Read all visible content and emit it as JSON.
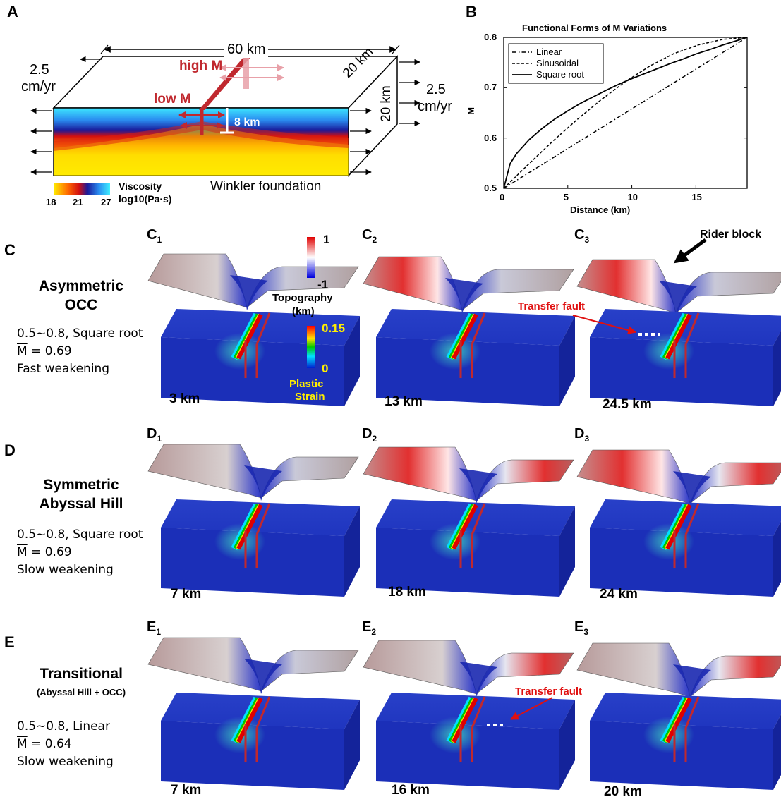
{
  "panelA": {
    "label": "A",
    "width_label": "60 km",
    "depth_label_top": "20 km",
    "depth_label_side": "20 km",
    "rate_left_value": "2.5",
    "rate_left_unit": "cm/yr",
    "rate_right_value": "2.5",
    "rate_right_unit": "cm/yr",
    "high_m": "high M",
    "low_m": "low M",
    "fault_depth": "8 km",
    "viscosity_title": "Viscosity",
    "viscosity_unit": "log10(Pa·s)",
    "colorbar_ticks": [
      "18",
      "21",
      "27"
    ],
    "foundation": "Winkler foundation"
  },
  "panelB": {
    "label": "B",
    "chart_data": {
      "type": "line",
      "title": "Functional Forms of M Variations",
      "xlabel": "Distance (km)",
      "ylabel": "M",
      "xlim": [
        0,
        19
      ],
      "ylim": [
        0.5,
        0.8
      ],
      "xticks": [
        "0",
        "5",
        "10",
        "15"
      ],
      "yticks": [
        "0.5",
        "0.6",
        "0.7",
        "0.8"
      ],
      "legend_position": "top-left",
      "series": [
        {
          "name": "Linear",
          "style": "dashdot",
          "x": [
            0,
            19
          ],
          "y": [
            0.5,
            0.8
          ]
        },
        {
          "name": "Sinusoidal",
          "style": "dashed",
          "x": [
            0,
            1.9,
            3.8,
            5.7,
            7.6,
            9.5,
            11.4,
            13.3,
            15.2,
            17.1,
            19
          ],
          "y": [
            0.5,
            0.547,
            0.593,
            0.636,
            0.676,
            0.712,
            0.743,
            0.768,
            0.785,
            0.796,
            0.8
          ]
        },
        {
          "name": "Square root",
          "style": "solid",
          "x": [
            0,
            0.5,
            1,
            2,
            3,
            4,
            5,
            6,
            7,
            8,
            9,
            10,
            11,
            12,
            13,
            14,
            15,
            16,
            17,
            18,
            19
          ],
          "y": [
            0.5,
            0.549,
            0.569,
            0.597,
            0.619,
            0.638,
            0.654,
            0.669,
            0.682,
            0.695,
            0.707,
            0.718,
            0.728,
            0.738,
            0.748,
            0.757,
            0.767,
            0.775,
            0.784,
            0.792,
            0.8
          ]
        }
      ]
    }
  },
  "rowC": {
    "label": "C",
    "title_line1": "Asymmetric",
    "title_line2": "OCC",
    "range_form": "0.5~0.8, Square root",
    "mbar_symbol": "M",
    "mbar_value": " = 0.69",
    "weakening": "Fast weakening",
    "panels": [
      {
        "id": "C",
        "sub": "1",
        "dist": "3 km"
      },
      {
        "id": "C",
        "sub": "2",
        "dist": "13 km"
      },
      {
        "id": "C",
        "sub": "3",
        "dist": "24.5 km"
      }
    ],
    "topo_colorbar": {
      "max": "1",
      "min": "-1",
      "label1": "Topography",
      "label2": "(km)"
    },
    "strain_colorbar": {
      "max": "0.15",
      "min": "0",
      "label1": "Plastic",
      "label2": "Strain"
    },
    "rider_block": "Rider block",
    "transfer_fault": "Transfer fault"
  },
  "rowD": {
    "label": "D",
    "title_line1": "Symmetric",
    "title_line2": "Abyssal Hill",
    "range_form": "0.5~0.8, Square root",
    "mbar_symbol": "M",
    "mbar_value": " = 0.69",
    "weakening": "Slow weakening",
    "panels": [
      {
        "id": "D",
        "sub": "1",
        "dist": "7 km"
      },
      {
        "id": "D",
        "sub": "2",
        "dist": "18 km"
      },
      {
        "id": "D",
        "sub": "3",
        "dist": "24 km"
      }
    ]
  },
  "rowE": {
    "label": "E",
    "title_line1": "Transitional",
    "title_line2": "(Abyssal Hill + OCC)",
    "range_form": "0.5~0.8, Linear",
    "mbar_symbol": "M",
    "mbar_value": " = 0.64",
    "weakening": "Slow weakening",
    "panels": [
      {
        "id": "E",
        "sub": "1",
        "dist": "7 km"
      },
      {
        "id": "E",
        "sub": "2",
        "dist": "16 km"
      },
      {
        "id": "E",
        "sub": "3",
        "dist": "20 km"
      }
    ],
    "transfer_fault": "Transfer fault"
  },
  "colors": {
    "fault_red": "#c0282e",
    "topo_red": "#cc2a2a",
    "topo_blue": "#2a36c8",
    "box_blue": "#1b2fb8",
    "annotation_red": "#e01010"
  }
}
